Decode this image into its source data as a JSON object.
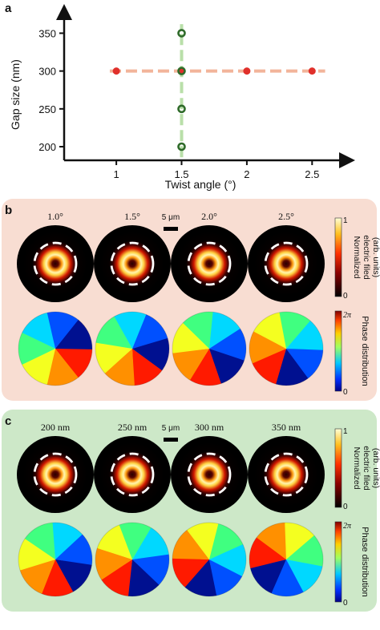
{
  "panel_a": {
    "letter": "a",
    "chart_data": {
      "type": "scatter",
      "xlabel": "Twist angle (°)",
      "ylabel": "Gap size (nm)",
      "xlim": [
        0.6,
        2.75
      ],
      "ylim": [
        182,
        378
      ],
      "x_ticks": [
        "1",
        "1.5",
        "2",
        "2.5"
      ],
      "x_tick_values": [
        1,
        1.5,
        2,
        2.5
      ],
      "y_ticks": [
        "200",
        "250",
        "300",
        "350"
      ],
      "y_tick_values": [
        200,
        250,
        300,
        350
      ],
      "series": [
        {
          "color": "#e0302b",
          "marker": "filled-circle",
          "points": [
            [
              1,
              300
            ],
            [
              1.5,
              300
            ],
            [
              2,
              300
            ],
            [
              2.5,
              300
            ]
          ],
          "guide": {
            "orientation": "horizontal",
            "value": 300,
            "x_range": [
              0.95,
              2.6
            ],
            "color": "#f2b49a",
            "style": "dashed"
          }
        },
        {
          "color": "#2f6b2a",
          "marker": "open-circle",
          "points": [
            [
              1.5,
              200
            ],
            [
              1.5,
              250
            ],
            [
              1.5,
              300
            ],
            [
              1.5,
              350
            ]
          ],
          "guide": {
            "orientation": "vertical",
            "value": 1.5,
            "y_range": [
              186,
              362
            ],
            "color": "#b9dfa9",
            "style": "dashed"
          }
        }
      ]
    }
  },
  "panel_b": {
    "letter": "b",
    "background": "#f8ddd2",
    "labels": [
      "1.0°",
      "1.5°",
      "2.0°",
      "2.5°"
    ],
    "scale_bar": "5 μm",
    "field_colorbar": {
      "title": [
        "Normalized",
        "electric filed",
        "(arb. units)"
      ],
      "max": "1",
      "min": "0"
    },
    "phase_colorbar": {
      "title": "Phase distribution",
      "max": "2π",
      "min": "0"
    }
  },
  "panel_c": {
    "letter": "c",
    "background": "#cde8c8",
    "labels": [
      "200 nm",
      "250 nm",
      "300 nm",
      "350 nm"
    ],
    "scale_bar": "5 μm",
    "field_colorbar": {
      "title": [
        "Normalized",
        "electric filed",
        "(arb. units)"
      ],
      "max": "1",
      "min": "0"
    },
    "phase_colorbar": {
      "title": "Phase distribution",
      "max": "2π",
      "min": "0"
    }
  }
}
